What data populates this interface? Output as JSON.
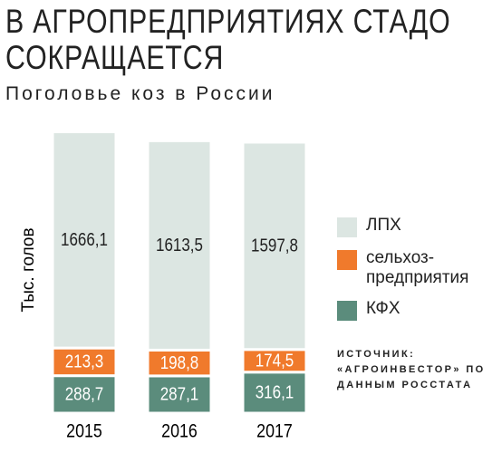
{
  "chart_data": {
    "type": "stacked_bar",
    "title": "В АГРОПРЕДПРИЯТИЯХ СТАДО СОКРАЩАЕТСЯ",
    "subtitle": "Поголовье коз в России",
    "y_label": "Тыс. голов",
    "categories": [
      "2015",
      "2016",
      "2017"
    ],
    "series": [
      {
        "name": "КФХ",
        "color": "#5b8c7c",
        "values": [
          288.7,
          287.1,
          316.1
        ],
        "value_labels": [
          "288,7",
          "287,1",
          "316,1"
        ]
      },
      {
        "name": "сельхоз-предприятия",
        "color": "#f07a2c",
        "values": [
          213.3,
          198.8,
          174.5
        ],
        "value_labels": [
          "213,3",
          "198,8",
          "174,5"
        ]
      },
      {
        "name": "ЛПХ",
        "color": "#dce6e2",
        "values": [
          1666.1,
          1613.5,
          1597.8
        ],
        "value_labels": [
          "1666,1",
          "1613,5",
          "1597,8"
        ]
      }
    ],
    "source": "ИСТОЧНИК: «АГРОИНВЕСТОР» ПО ДАННЫМ РОССТАТА"
  }
}
